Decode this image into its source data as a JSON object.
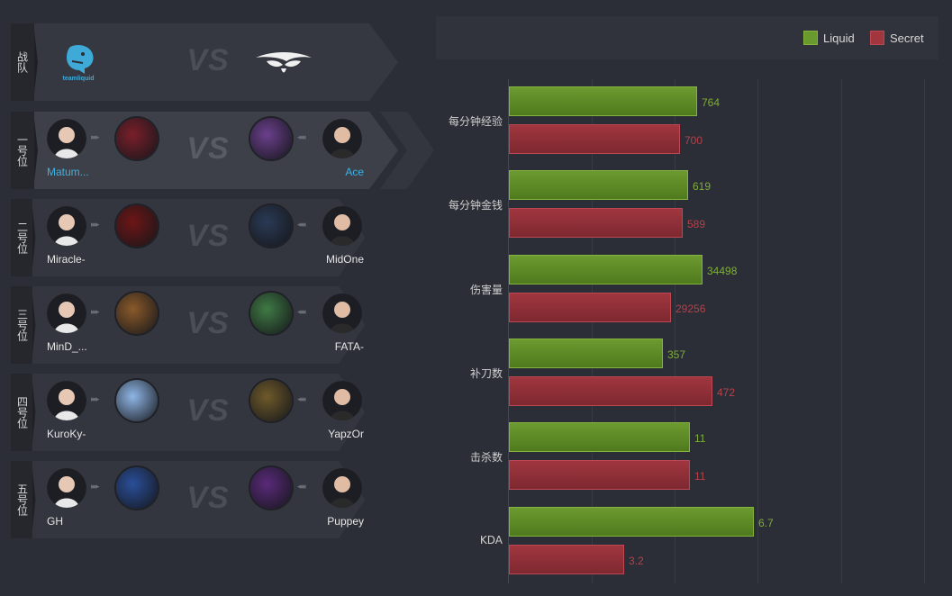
{
  "header_row": {
    "label": "战队",
    "left_team_logo_text": "teamliquid",
    "vs": "VS"
  },
  "positions": [
    {
      "label": "一号位",
      "left_player": "Matum...",
      "right_player": "Ace",
      "highlight": true,
      "left_hero_color": "#7a1f2a",
      "right_hero_color": "#6b3f8c"
    },
    {
      "label": "二号位",
      "left_player": "Miracle-",
      "right_player": "MidOne",
      "highlight": false,
      "left_hero_color": "#6e1616",
      "right_hero_color": "#2a3a55"
    },
    {
      "label": "三号位",
      "left_player": "MinD_...",
      "right_player": "FATA-",
      "highlight": false,
      "left_hero_color": "#8a5a2a",
      "right_hero_color": "#3f7a44"
    },
    {
      "label": "四号位",
      "left_player": "KuroKy-",
      "right_player": "YapzOr",
      "highlight": false,
      "left_hero_color": "#8fb6e6",
      "right_hero_color": "#6e5a2a"
    },
    {
      "label": "五号位",
      "left_player": "GH",
      "right_player": "Puppey",
      "highlight": false,
      "left_hero_color": "#2a4f9a",
      "right_hero_color": "#5a2a7a"
    }
  ],
  "vs": "VS",
  "legend": [
    {
      "name": "Liquid",
      "color": "#6a9a2e"
    },
    {
      "name": "Secret",
      "color": "#a2363f"
    }
  ],
  "chart_data": {
    "type": "bar",
    "orientation": "horizontal",
    "categories": [
      "每分钟经验",
      "每分钟金钱",
      "伤害量",
      "补刀数",
      "击杀数",
      "KDA"
    ],
    "series": [
      {
        "name": "Liquid",
        "values": [
          "764",
          "619",
          "34498",
          "357",
          "11",
          "6.7"
        ]
      },
      {
        "name": "Secret",
        "values": [
          "700",
          "589",
          "29256",
          "472",
          "11",
          "3.2"
        ]
      }
    ],
    "relative_fill": {
      "Liquid": [
        0.77,
        0.73,
        0.79,
        0.63,
        0.74,
        1.0
      ],
      "Secret": [
        0.7,
        0.71,
        0.66,
        0.83,
        0.74,
        0.47
      ]
    },
    "grid": true,
    "legend_position": "top-right"
  }
}
